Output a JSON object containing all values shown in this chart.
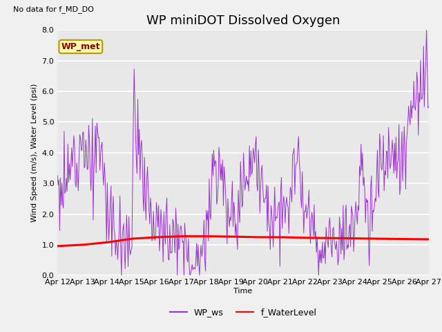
{
  "title": "WP miniDOT Dissolved Oxygen",
  "top_left_text": "No data for f_MD_DO",
  "ylabel": "Wind Speed (m/s), Water Level (psi)",
  "xlabel": "Time",
  "ylim": [
    0.0,
    8.0
  ],
  "yticks": [
    0.0,
    1.0,
    2.0,
    3.0,
    4.0,
    5.0,
    6.0,
    7.0,
    8.0
  ],
  "ytick_labels": [
    "0.0",
    "1.0",
    "2.0",
    "3.0",
    "4.0",
    "5.0",
    "6.0",
    "7.0",
    "8.0"
  ],
  "outer_bg": "#f0f0f0",
  "plot_bg": "#e8e8e8",
  "grid_color": "white",
  "wp_ws_color": "#9933cc",
  "f_wl_color": "red",
  "legend_label_ws": "WP_ws",
  "legend_label_wl": "f_WaterLevel",
  "inset_label": "WP_met",
  "inset_fg": "#8b0000",
  "inset_bg": "#ffffaa",
  "inset_border": "#b8960c",
  "xtick_labels": [
    "Apr 12",
    "Apr 13",
    "Apr 14",
    "Apr 15",
    "Apr 16",
    "Apr 17",
    "Apr 18",
    "Apr 19",
    "Apr 20",
    "Apr 21",
    "Apr 22",
    "Apr 23",
    "Apr 24",
    "Apr 25",
    "Apr 26",
    "Apr 27"
  ],
  "title_fontsize": 13,
  "axis_fontsize": 8,
  "tick_fontsize": 8,
  "n_days": 15,
  "n_pts": 500
}
